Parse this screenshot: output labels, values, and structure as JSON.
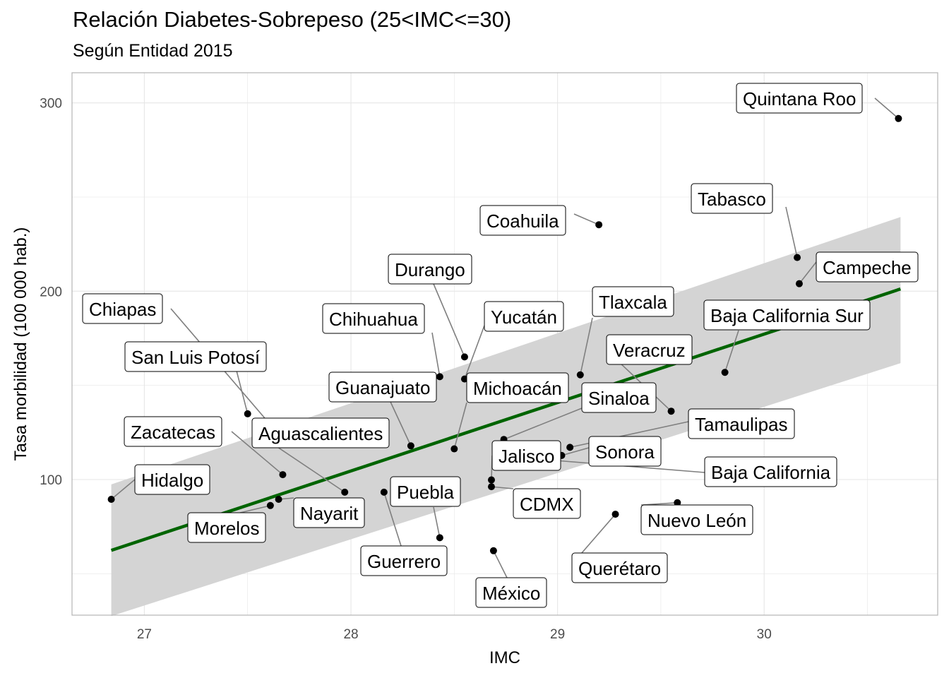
{
  "chart_data": {
    "type": "scatter",
    "title": "Relación Diabetes-Sobrepeso (25<IMC<=30)",
    "subtitle": "Según Entidad 2015",
    "xlabel": "IMC",
    "ylabel": "Tasa morbilidad (100 000 hab.)",
    "xlim": [
      26.65,
      30.84
    ],
    "ylim": [
      28,
      316
    ],
    "xticks": [
      27,
      28,
      29,
      30
    ],
    "yticks": [
      100,
      200,
      300
    ],
    "grid": true,
    "trend": {
      "method": "linear",
      "x": [
        26.84,
        30.66
      ],
      "y": [
        62.4,
        201.2
      ],
      "ci_lower": [
        27.5,
        161.8
      ],
      "ci_upper": [
        97.4,
        239.4
      ]
    },
    "colors": {
      "trend_line": "#006400",
      "band": "#d4d4d4",
      "points": "#000000",
      "grid": "#e6e6e6",
      "panel_border": "#b3b3b3",
      "leader": "#7f7f7f"
    },
    "points": [
      {
        "name": "Quintana Roo",
        "x": 30.65,
        "y": 291.7
      },
      {
        "name": "Coahuila",
        "x": 29.2,
        "y": 235.3
      },
      {
        "name": "Tabasco",
        "x": 30.16,
        "y": 217.9
      },
      {
        "name": "Campeche",
        "x": 30.17,
        "y": 204.0
      },
      {
        "name": "Durango",
        "x": 28.55,
        "y": 165.1
      },
      {
        "name": "Chihuahua",
        "x": 28.43,
        "y": 154.6
      },
      {
        "name": "Yucatán",
        "x": 28.55,
        "y": 153.4
      },
      {
        "name": "Tlaxcala",
        "x": 29.11,
        "y": 155.6
      },
      {
        "name": "Baja California Sur",
        "x": 29.81,
        "y": 156.9
      },
      {
        "name": "Chiapas",
        "x": 27.64,
        "y": 125.3
      },
      {
        "name": "San Luis Potosí",
        "x": 27.5,
        "y": 134.9
      },
      {
        "name": "Veracruz",
        "x": 29.55,
        "y": 136.3
      },
      {
        "name": "Guanajuato",
        "x": 28.29,
        "y": 117.9
      },
      {
        "name": "Michoacán",
        "x": 28.5,
        "y": 116.3
      },
      {
        "name": "Sinaloa",
        "x": 28.74,
        "y": 121.3
      },
      {
        "name": "Tamaulipas",
        "x": 29.06,
        "y": 117.1
      },
      {
        "name": "Zacatecas",
        "x": 27.67,
        "y": 102.6
      },
      {
        "name": "Aguascalientes",
        "x": 27.97,
        "y": 93.3
      },
      {
        "name": "Hidalgo",
        "x": 26.84,
        "y": 89.5
      },
      {
        "name": "Morelos",
        "x": 27.61,
        "y": 86.2
      },
      {
        "name": "Nayarit",
        "x": 27.65,
        "y": 89.5
      },
      {
        "name": "Guerrero",
        "x": 28.16,
        "y": 93.3
      },
      {
        "name": "Jalisco",
        "x": 28.68,
        "y": 99.8
      },
      {
        "name": "CDMX",
        "x": 28.68,
        "y": 96.2
      },
      {
        "name": "Sonora",
        "x": 29.02,
        "y": 112.8
      },
      {
        "name": "Puebla",
        "x": 28.43,
        "y": 69.1
      },
      {
        "name": "México",
        "x": 28.69,
        "y": 62.2
      },
      {
        "name": "Querétaro",
        "x": 29.28,
        "y": 81.6
      },
      {
        "name": "Nuevo León",
        "x": 29.58,
        "y": 87.7
      },
      {
        "name": "Baja California",
        "x": 28.79,
        "y": 111.9
      }
    ]
  }
}
